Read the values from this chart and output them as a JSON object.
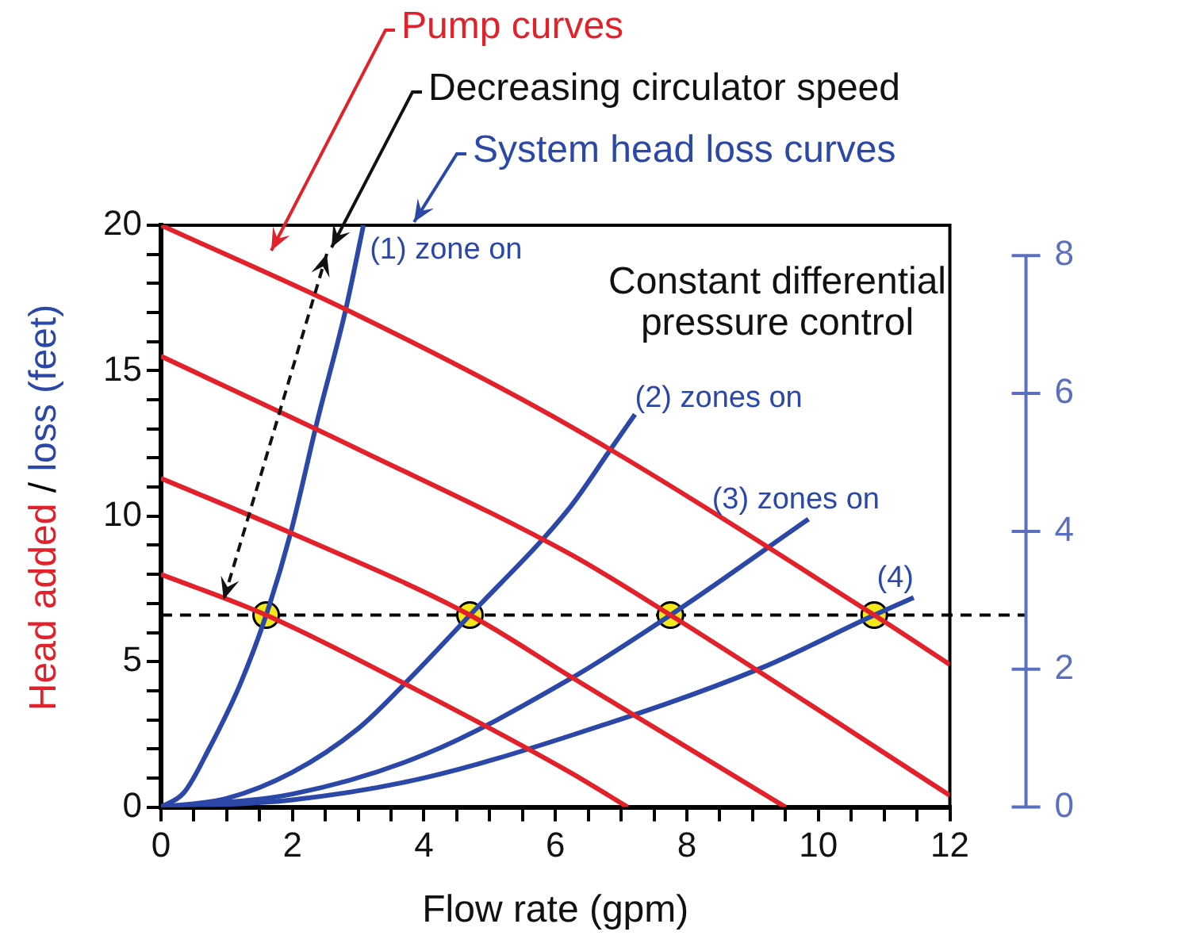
{
  "chart_data": {
    "type": "line",
    "xlabel": "Flow rate (gpm)",
    "ylabel": "Head added / loss (feet)",
    "annotations": [
      "Pump curves",
      "Decreasing circulator speed",
      "System head loss curves",
      "Constant differential pressure control"
    ],
    "xlim": [
      0,
      12
    ],
    "ylim": [
      0,
      20
    ],
    "y2lim": [
      0,
      8.44
    ],
    "xticks": [
      0,
      {
        "value": 0.5,
        "label": null
      },
      {
        "value": 1,
        "label": null
      },
      {
        "value": 1.5,
        "label": null
      },
      2,
      {
        "value": 2.5,
        "label": null
      },
      {
        "value": 3,
        "label": null
      },
      {
        "value": 3.5,
        "label": null
      },
      4,
      {
        "value": 4.5,
        "label": null
      },
      {
        "value": 5,
        "label": null
      },
      {
        "value": 5.5,
        "label": null
      },
      6,
      {
        "value": 6.5,
        "label": null
      },
      {
        "value": 7,
        "label": null
      },
      {
        "value": 7.5,
        "label": null
      },
      8,
      {
        "value": 8.5,
        "label": null
      },
      {
        "value": 9,
        "label": null
      },
      {
        "value": 9.5,
        "label": null
      },
      10,
      {
        "value": 10.5,
        "label": null
      },
      {
        "value": 11,
        "label": null
      },
      {
        "value": 11.5,
        "label": null
      },
      12
    ],
    "yticks": [
      0,
      {
        "value": 1,
        "label": null
      },
      {
        "value": 2,
        "label": null
      },
      {
        "value": 3,
        "label": null
      },
      {
        "value": 4,
        "label": null
      },
      5,
      {
        "value": 6,
        "label": null
      },
      {
        "value": 7,
        "label": null
      },
      {
        "value": 8,
        "label": null
      },
      {
        "value": 9,
        "label": null
      },
      10,
      {
        "value": 11,
        "label": null
      },
      {
        "value": 12,
        "label": null
      },
      {
        "value": 13,
        "label": null
      },
      {
        "value": 14,
        "label": null
      },
      15,
      {
        "value": 16,
        "label": null
      },
      {
        "value": 17,
        "label": null
      },
      {
        "value": 18,
        "label": null
      },
      {
        "value": 19,
        "label": null
      },
      20
    ],
    "y2ticks": [
      0,
      2,
      4,
      6,
      8
    ],
    "grid": false,
    "legend": false,
    "marker": "none",
    "line_style": "solid",
    "ref_lines": [
      {
        "axis": "y",
        "value": 6.6,
        "color": "#000000",
        "line_style": "dashed"
      }
    ],
    "series": [
      {
        "color": "#e3212b",
        "x": [
          0,
          3,
          6.22,
          10.85,
          12
        ],
        "values": [
          20,
          16.9,
          13.1,
          6.6,
          4.9
        ]
      },
      {
        "type": "line",
        "color": "#e3212b",
        "x": [
          0,
          3,
          6.22,
          7.75,
          12
        ],
        "values": [
          15.5,
          12.3,
          8.7,
          6.6,
          0.4
        ]
      },
      {
        "type": "line",
        "color": "#e3212b",
        "x": [
          0,
          2,
          4.7,
          6.22,
          9.5
        ],
        "values": [
          11.3,
          9.4,
          6.6,
          4.5,
          0
        ]
      },
      {
        "type": "line",
        "color": "#e3212b",
        "x": [
          0,
          1.6,
          4,
          6.22,
          7.1
        ],
        "values": [
          8,
          6.6,
          3.9,
          1.2,
          0
        ]
      },
      {
        "type": "line",
        "name": "(1) zone on",
        "color": "#2b47a8",
        "x": [
          0,
          0.35,
          0.73,
          1.2,
          1.6,
          1.97,
          2.37,
          2.81,
          3.08
        ],
        "values": [
          0,
          0.5,
          2,
          4.2,
          6.6,
          9.4,
          13.2,
          17.1,
          20
        ]
      },
      {
        "type": "line",
        "name": "(2) zones on",
        "color": "#2b47a8",
        "x": [
          0,
          1,
          2,
          3,
          3.69,
          4.7,
          6.22,
          6.84,
          7.21
        ],
        "values": [
          0,
          0.3,
          1.2,
          2.7,
          4.2,
          6.6,
          10.3,
          12.3,
          13.5
        ]
      },
      {
        "type": "line",
        "name": "(3) zones on",
        "color": "#2b47a8",
        "x": [
          0,
          2,
          4,
          6.22,
          7.75,
          9.85
        ],
        "values": [
          0,
          0.45,
          1.8,
          4.4,
          6.6,
          9.9
        ]
      },
      {
        "type": "line",
        "name": "(4)",
        "color": "#2b47a8",
        "x": [
          0,
          2,
          4,
          6.22,
          9.12,
          10.85,
          11.45
        ],
        "values": [
          0,
          0.25,
          1,
          2.45,
          4.77,
          6.6,
          7.2
        ]
      },
      {
        "type": "scatter",
        "color": "#f2e81c",
        "marker": "circle",
        "x": [
          1.6,
          4.7,
          7.75,
          10.85
        ],
        "values": [
          6.6,
          6.6,
          6.6,
          6.6
        ]
      }
    ]
  }
}
